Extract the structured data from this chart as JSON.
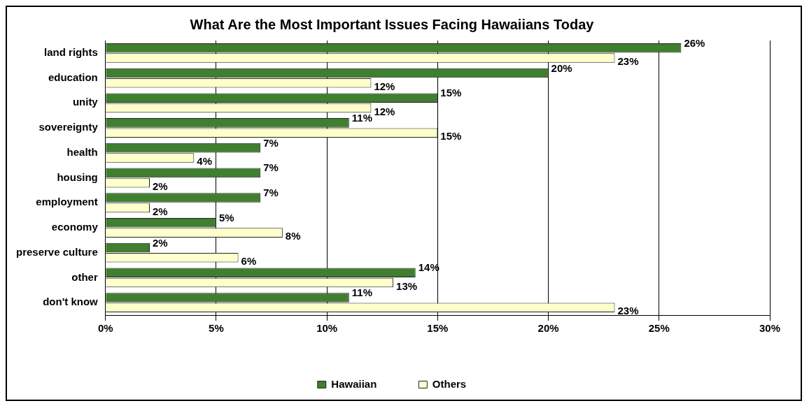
{
  "chart_data": {
    "type": "bar",
    "orientation": "horizontal",
    "title": "What Are the Most Important Issues Facing Hawaiians Today",
    "categories": [
      "land rights",
      "education",
      "unity",
      "sovereignty",
      "health",
      "housing",
      "employment",
      "economy",
      "preserve culture",
      "other",
      "don't know"
    ],
    "series": [
      {
        "name": "Hawaiian",
        "color": "#3f7f2f",
        "values": [
          26,
          20,
          15,
          11,
          7,
          7,
          7,
          5,
          2,
          14,
          11
        ],
        "value_labels": [
          "26%",
          "20%",
          "15%",
          "11%",
          "7%",
          "7%",
          "7%",
          "5%",
          "2%",
          "14%",
          "11%"
        ]
      },
      {
        "name": "Others",
        "color": "#ffffcc",
        "values": [
          23,
          12,
          12,
          15,
          4,
          2,
          2,
          8,
          6,
          13,
          23
        ],
        "value_labels": [
          "23%",
          "12%",
          "12%",
          "15%",
          "4%",
          "2%",
          "2%",
          "8%",
          "6%",
          "13%",
          "23%"
        ]
      }
    ],
    "xlim": [
      0,
      30
    ],
    "xticks": [
      {
        "value": 0,
        "label": "0%"
      },
      {
        "value": 5,
        "label": "5%"
      },
      {
        "value": 10,
        "label": "10%"
      },
      {
        "value": 15,
        "label": "15%"
      },
      {
        "value": 20,
        "label": "20%"
      },
      {
        "value": 25,
        "label": "25%"
      },
      {
        "value": 30,
        "label": "30%"
      }
    ],
    "grid": "x",
    "legend": "bottom"
  }
}
